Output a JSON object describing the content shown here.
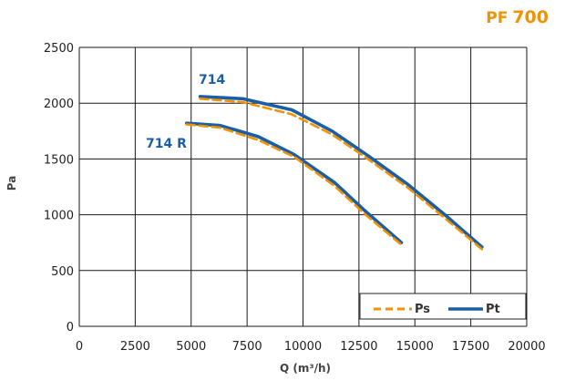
{
  "brand": {
    "prefix": "PF",
    "number": "700",
    "color": "#f39200"
  },
  "colors": {
    "ps": "#f39200",
    "pt": "#1a5ea8",
    "grid": "#1a1a1a"
  },
  "chart_data": {
    "type": "line",
    "xlabel": "Q (m³/h)",
    "ylabel": "Pa",
    "xlim": [
      0,
      20000
    ],
    "ylim": [
      0,
      2500
    ],
    "x_ticks": [
      "0",
      "2500",
      "5000",
      "7500",
      "10000",
      "12500",
      "15000",
      "17500",
      "20000"
    ],
    "y_ticks": [
      "0",
      "500",
      "1000",
      "1500",
      "2000",
      "2500"
    ],
    "grid": true,
    "legend": {
      "placement": "bottom-right",
      "entries": [
        "Ps",
        "Pt"
      ]
    },
    "curve_labels": [
      {
        "text": "714",
        "series": "714"
      },
      {
        "text": "714 R",
        "series": "714 R"
      }
    ],
    "series": [
      {
        "curve": "714",
        "name": "Ps",
        "x": [
          5400,
          7300,
          9500,
          11300,
          12900,
          14700,
          16400,
          18000
        ],
        "y": [
          2040,
          2010,
          1900,
          1720,
          1500,
          1240,
          960,
          690
        ]
      },
      {
        "curve": "714",
        "name": "Pt",
        "x": [
          5400,
          7300,
          9500,
          11300,
          12900,
          14700,
          16400,
          18000
        ],
        "y": [
          2060,
          2040,
          1940,
          1750,
          1530,
          1270,
          990,
          710
        ]
      },
      {
        "curve": "714 R",
        "name": "Ps",
        "x": [
          4800,
          6300,
          8000,
          9600,
          11400,
          12800,
          14400
        ],
        "y": [
          1810,
          1780,
          1670,
          1520,
          1260,
          1000,
          730
        ]
      },
      {
        "curve": "714 R",
        "name": "Pt",
        "x": [
          4800,
          6300,
          8000,
          9600,
          11400,
          12800,
          14400
        ],
        "y": [
          1820,
          1800,
          1700,
          1540,
          1290,
          1030,
          750
        ]
      }
    ]
  }
}
